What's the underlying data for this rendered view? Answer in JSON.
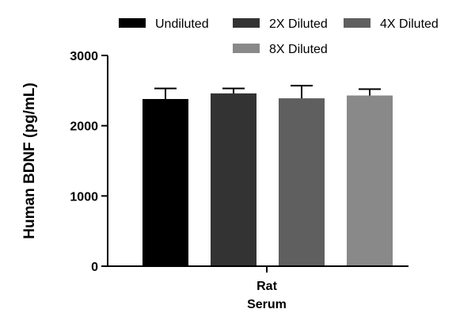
{
  "chart_data": {
    "type": "bar",
    "ylabel": "Human BDNF (pg/mL)",
    "xlabel": "",
    "category_label_lines": [
      "Rat",
      "Serum"
    ],
    "ylim": [
      0,
      3000
    ],
    "yticks": [
      0,
      1000,
      2000,
      3000
    ],
    "ytick_labels": [
      "0",
      "1000",
      "2000",
      "3000"
    ],
    "legend_position": "top",
    "series": [
      {
        "name": "Undiluted",
        "value": 2380,
        "error": 150,
        "color": "#000000"
      },
      {
        "name": "2X Diluted",
        "value": 2460,
        "error": 70,
        "color": "#333333"
      },
      {
        "name": "4X Diluted",
        "value": 2390,
        "error": 180,
        "color": "#5f5f5f"
      },
      {
        "name": "8X Diluted",
        "value": 2430,
        "error": 90,
        "color": "#898989"
      }
    ]
  }
}
